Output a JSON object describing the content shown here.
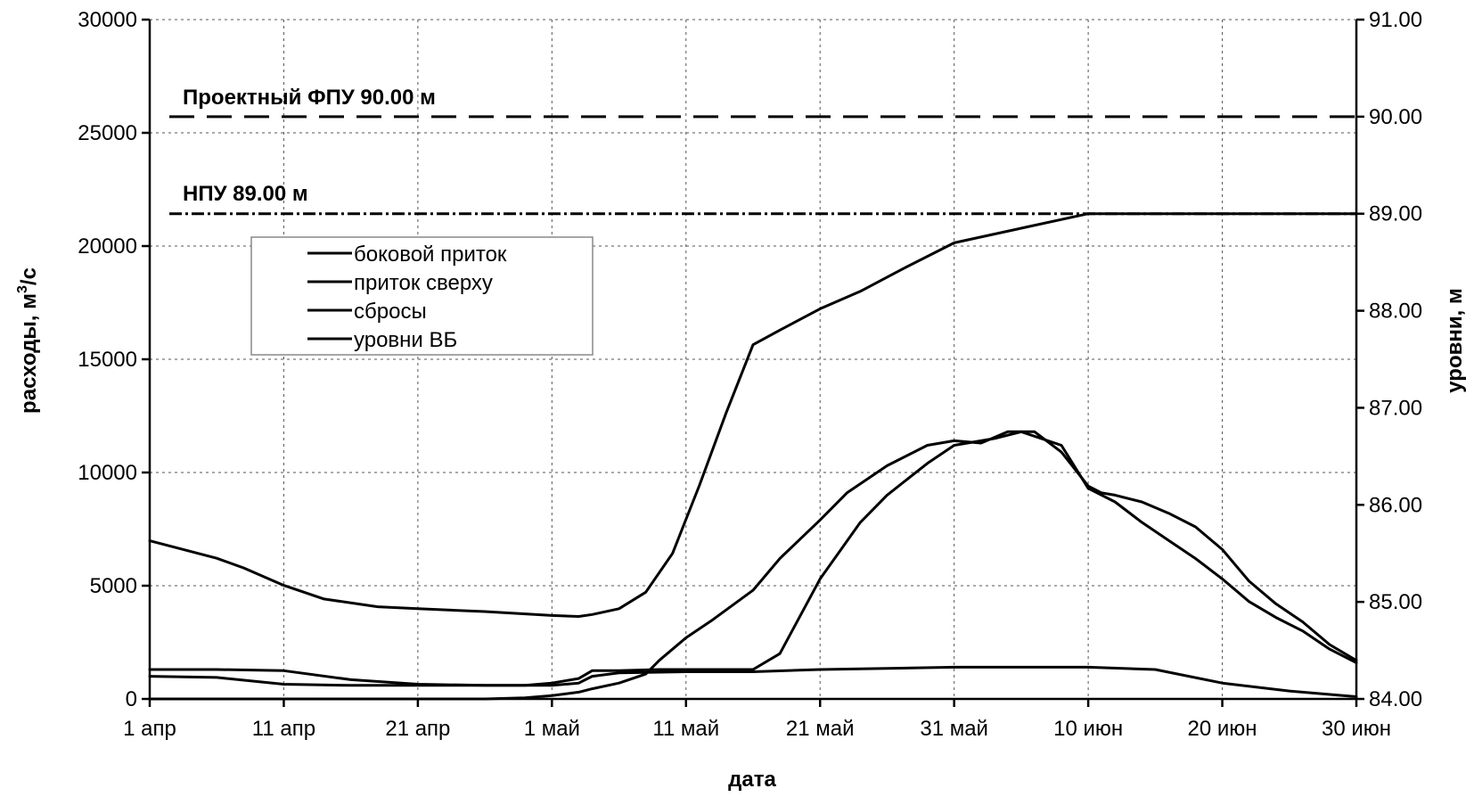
{
  "chart_data": {
    "type": "line",
    "title": "",
    "xlabel": "дата",
    "ylabel_left_main": "расходы, м",
    "ylabel_left_sup": "3",
    "ylabel_left_tail": "/с",
    "ylabel_right": "уровни, м",
    "x_range": [
      0,
      90
    ],
    "ylim_left": [
      0,
      30000
    ],
    "ylim_right": [
      84.0,
      91.0
    ],
    "y_left_ticks": [
      "0",
      "5000",
      "10000",
      "15000",
      "20000",
      "25000",
      "30000"
    ],
    "y_left_tick_values": [
      0,
      5000,
      10000,
      15000,
      20000,
      25000,
      30000
    ],
    "y_right_ticks": [
      "84.00",
      "85.00",
      "86.00",
      "87.00",
      "88.00",
      "89.00",
      "90.00",
      "91.00"
    ],
    "y_right_tick_values": [
      84,
      85,
      86,
      87,
      88,
      89,
      90,
      91
    ],
    "x_ticks": [
      "1 апр",
      "11 апр",
      "21 апр",
      "1 май",
      "11 май",
      "21 май",
      "31 май",
      "10 июн",
      "20 июн",
      "30 июн"
    ],
    "x_tick_values": [
      0,
      10,
      20,
      30,
      40,
      50,
      60,
      70,
      80,
      90
    ],
    "grid": true,
    "reference_lines": [
      {
        "label": "Проектный ФПУ 90.00 м",
        "axis": "right",
        "value": 90.0,
        "style": "dashed"
      },
      {
        "label": "НПУ 89.00 м",
        "axis": "right",
        "value": 89.0,
        "style": "dashdot"
      }
    ],
    "legend": {
      "placement": "upper-left",
      "entries": [
        "боковой приток",
        "приток сверху",
        "сбросы",
        "уровни ВБ"
      ]
    },
    "series": [
      {
        "name": "боковой приток",
        "axis": "left",
        "x": [
          0,
          5,
          10,
          15,
          20,
          25,
          30,
          32,
          33,
          35,
          40,
          45,
          50,
          55,
          60,
          65,
          70,
          75,
          80,
          85,
          90
        ],
        "y": [
          1000,
          950,
          650,
          600,
          600,
          600,
          600,
          700,
          1000,
          1150,
          1200,
          1200,
          1300,
          1350,
          1400,
          1400,
          1400,
          1300,
          700,
          350,
          100
        ]
      },
      {
        "name": "приток сверху",
        "axis": "left",
        "x": [
          0,
          5,
          10,
          15,
          20,
          25,
          28,
          30,
          32,
          33,
          35,
          38,
          40,
          42,
          44,
          45,
          47,
          50,
          53,
          55,
          58,
          60,
          63,
          65,
          68,
          70,
          72,
          74,
          76,
          78,
          80,
          82,
          84,
          86,
          88,
          90
        ],
        "y": [
          1300,
          1300,
          1250,
          850,
          650,
          600,
          600,
          700,
          900,
          1250,
          1250,
          1300,
          1300,
          1300,
          1300,
          1300,
          2000,
          5300,
          7800,
          9000,
          10400,
          11200,
          11500,
          11800,
          11200,
          9300,
          8700,
          7800,
          7000,
          6200,
          5300,
          4300,
          3600,
          3000,
          2200,
          1600
        ]
      },
      {
        "name": "сбросы",
        "axis": "left",
        "x": [
          0,
          10,
          20,
          25,
          28,
          30,
          32,
          33,
          35,
          37,
          38,
          40,
          42,
          45,
          47,
          50,
          52,
          55,
          58,
          60,
          62,
          64,
          66,
          68,
          70,
          71,
          72,
          74,
          76,
          78,
          80,
          82,
          84,
          86,
          88,
          90
        ],
        "y": [
          0,
          0,
          0,
          0,
          50,
          150,
          300,
          450,
          700,
          1100,
          1700,
          2700,
          3500,
          4800,
          6200,
          7900,
          9100,
          10300,
          11200,
          11400,
          11300,
          11800,
          11800,
          10900,
          9400,
          9100,
          9000,
          8700,
          8200,
          7600,
          6600,
          5200,
          4200,
          3400,
          2400,
          1700
        ]
      },
      {
        "name": "уровни ВБ",
        "axis": "right",
        "x": [
          0,
          5,
          7,
          10,
          13,
          17,
          20,
          25,
          30,
          32,
          33,
          35,
          37,
          39,
          41,
          43,
          45,
          47,
          50,
          53,
          56,
          60,
          65,
          70,
          80,
          90
        ],
        "y": [
          85.63,
          85.45,
          85.35,
          85.17,
          85.03,
          84.95,
          84.93,
          84.9,
          84.86,
          84.85,
          84.87,
          84.93,
          85.1,
          85.5,
          86.2,
          86.95,
          87.65,
          87.8,
          88.02,
          88.2,
          88.42,
          88.7,
          88.85,
          89.0,
          89.0,
          89.0
        ]
      }
    ]
  }
}
